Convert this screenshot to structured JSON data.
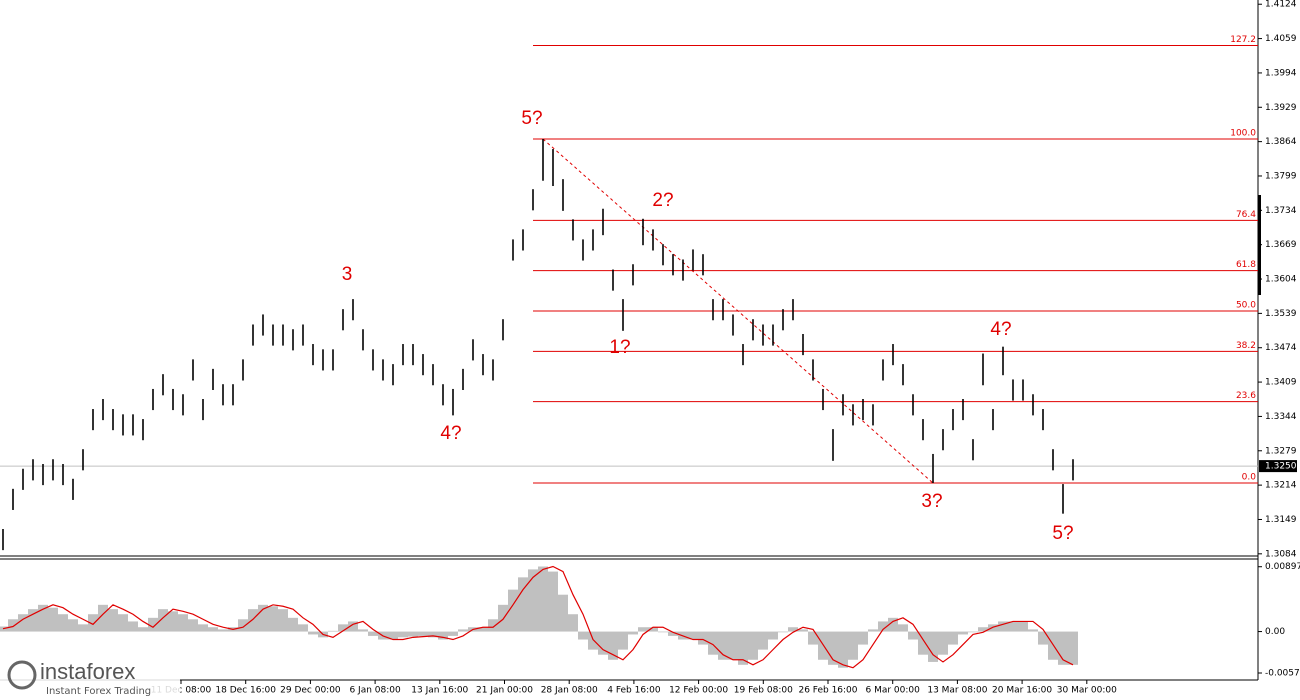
{
  "chart_data": [
    {
      "type": "ohlc",
      "ylim": [
        1.3078,
        1.4132
      ],
      "yticks": [
        1.4124,
        1.4059,
        1.3994,
        1.3929,
        1.3864,
        1.3799,
        1.3734,
        1.3669,
        1.3604,
        1.3539,
        1.3474,
        1.3409,
        1.3344,
        1.3279,
        1.3214,
        1.3149,
        1.3084
      ],
      "color": "#000000",
      "high": [
        1.3131,
        1.3207,
        1.3245,
        1.3263,
        1.3254,
        1.3263,
        1.3254,
        1.3226,
        1.3282,
        1.3358,
        1.3377,
        1.3358,
        1.3348,
        1.3348,
        1.3339,
        1.3396,
        1.3424,
        1.3396,
        1.3386,
        1.3452,
        1.3377,
        1.3434,
        1.3405,
        1.3405,
        1.3452,
        1.3518,
        1.3537,
        1.3518,
        1.3518,
        1.3509,
        1.3518,
        1.3481,
        1.3471,
        1.3471,
        1.3547,
        1.3566,
        1.3509,
        1.3471,
        1.3452,
        1.3443,
        1.3481,
        1.3481,
        1.3462,
        1.3443,
        1.3405,
        1.3396,
        1.3434,
        1.349,
        1.3462,
        1.3452,
        1.3528,
        1.3679,
        1.3698,
        1.3774,
        1.3869,
        1.385,
        1.3793,
        1.3717,
        1.3679,
        1.3698,
        1.3737,
        1.3622,
        1.3566,
        1.3632,
        1.3718,
        1.3698,
        1.367,
        1.3651,
        1.3641,
        1.366,
        1.3651,
        1.3566,
        1.3566,
        1.3537,
        1.3481,
        1.3528,
        1.3518,
        1.3518,
        1.3547,
        1.3566,
        1.35,
        1.3452,
        1.3396,
        1.332,
        1.3386,
        1.3367,
        1.3377,
        1.3367,
        1.3452,
        1.3481,
        1.3443,
        1.3386,
        1.3339,
        1.3273,
        1.332,
        1.3358,
        1.3377,
        1.3301,
        1.3463,
        1.3358,
        1.3476,
        1.3414,
        1.3414,
        1.3386,
        1.3358,
        1.3282,
        1.3216,
        1.3263
      ],
      "low": [
        1.3091,
        1.3167,
        1.3205,
        1.3223,
        1.3214,
        1.3223,
        1.3214,
        1.3186,
        1.3242,
        1.3318,
        1.3337,
        1.3318,
        1.3308,
        1.3308,
        1.3299,
        1.3356,
        1.3384,
        1.3356,
        1.3346,
        1.3412,
        1.3337,
        1.3394,
        1.3365,
        1.3365,
        1.3412,
        1.3478,
        1.3497,
        1.3478,
        1.3478,
        1.3469,
        1.3478,
        1.3441,
        1.3431,
        1.3431,
        1.3507,
        1.3526,
        1.3469,
        1.3431,
        1.3412,
        1.3403,
        1.3441,
        1.3441,
        1.3422,
        1.3403,
        1.3365,
        1.3346,
        1.3394,
        1.345,
        1.3422,
        1.3412,
        1.3488,
        1.3639,
        1.3658,
        1.3734,
        1.379,
        1.378,
        1.3733,
        1.3677,
        1.3639,
        1.3658,
        1.3687,
        1.3582,
        1.3506,
        1.3592,
        1.3668,
        1.3658,
        1.363,
        1.3611,
        1.3601,
        1.362,
        1.3611,
        1.3526,
        1.3526,
        1.3497,
        1.3441,
        1.3488,
        1.3478,
        1.3478,
        1.3507,
        1.3526,
        1.346,
        1.3412,
        1.3356,
        1.326,
        1.3346,
        1.3327,
        1.3337,
        1.3327,
        1.3412,
        1.3441,
        1.3403,
        1.3346,
        1.3299,
        1.3218,
        1.328,
        1.3318,
        1.3337,
        1.3261,
        1.3403,
        1.3318,
        1.3422,
        1.3374,
        1.3374,
        1.3346,
        1.3318,
        1.3242,
        1.316,
        1.3223
      ],
      "current_price": {
        "value": 1.325,
        "label": "1.3250"
      },
      "fib_levels": [
        {
          "value": 1.4046,
          "label": "127.2"
        },
        {
          "value": 1.3869,
          "label": "100.0"
        },
        {
          "value": 1.3715,
          "label": "76.4"
        },
        {
          "value": 1.362,
          "label": "61.8"
        },
        {
          "value": 1.35435,
          "label": "50.0"
        },
        {
          "value": 1.3467,
          "label": "38.2"
        },
        {
          "value": 1.3372,
          "label": "23.6"
        },
        {
          "value": 1.3218,
          "label": "0.0"
        }
      ],
      "annotations": [
        "5?",
        "3",
        "4?",
        "2?",
        "1?",
        "4?",
        "3?",
        "5?"
      ],
      "x_labels": [
        "11 Dec 08:00",
        "18 Dec 16:00",
        "29 Dec 00:00",
        "6 Jan 08:00",
        "13 Jan 16:00",
        "21 Jan 00:00",
        "28 Jan 08:00",
        "4 Feb 16:00",
        "12 Feb 00:00",
        "19 Feb 08:00",
        "26 Feb 16:00",
        "6 Mar 00:00",
        "13 Mar 08:00",
        "20 Mar 16:00",
        "30 Mar 00:00"
      ]
    },
    {
      "type": "macd",
      "ylim": [
        -0.0067,
        0.0099
      ],
      "yticks": [
        0.00897,
        {
          "value": 0,
          "label": "0.00"
        },
        -0.00573
      ],
      "series": [
        {
          "name": "histogram",
          "color": "#c0c0c0",
          "values": [
            0.0007,
            0.0017,
            0.0024,
            0.0031,
            0.0037,
            0.0033,
            0.0024,
            0.0017,
            0.001,
            0.0024,
            0.0037,
            0.0031,
            0.0024,
            0.0014,
            0.0006,
            0.0019,
            0.0031,
            0.0028,
            0.0024,
            0.0017,
            0.001,
            0.0006,
            0.0003,
            0.0006,
            0.0017,
            0.0031,
            0.0037,
            0.0035,
            0.0031,
            0.0019,
            0.001,
            -0.0004,
            -0.0008,
            0.0001,
            0.001,
            0.0014,
            0.0003,
            -0.0006,
            -0.0011,
            -0.0011,
            -0.0008,
            -0.0007,
            -0.0006,
            -0.0008,
            -0.0011,
            -0.0006,
            0.0003,
            0.0006,
            0.0006,
            0.0017,
            0.0037,
            0.0058,
            0.0075,
            0.0086,
            0.009,
            0.0083,
            0.0051,
            0.0024,
            -0.0011,
            -0.0025,
            -0.0032,
            -0.0039,
            -0.0025,
            -0.0004,
            0.0006,
            0.0006,
            -0.0001,
            -0.0006,
            -0.0011,
            -0.0011,
            -0.0018,
            -0.0032,
            -0.0039,
            -0.0039,
            -0.0046,
            -0.0039,
            -0.0025,
            -0.0011,
            -0.0001,
            0.0006,
            0.0003,
            -0.0018,
            -0.0039,
            -0.0046,
            -0.005,
            -0.0039,
            -0.0018,
            0.0003,
            0.0014,
            0.0019,
            0.001,
            -0.0011,
            -0.0032,
            -0.0042,
            -0.0032,
            -0.0018,
            -0.0004,
            -0.0001,
            0.0006,
            0.001,
            0.0014,
            0.0014,
            0.0014,
            0.0003,
            -0.0018,
            -0.0039,
            -0.0046,
            -0.0046
          ]
        },
        {
          "name": "signal",
          "color": "#e00000",
          "values": [
            0.0004,
            0.0007,
            0.0017,
            0.0024,
            0.0031,
            0.0037,
            0.0033,
            0.0024,
            0.0017,
            0.001,
            0.0024,
            0.0037,
            0.0031,
            0.0024,
            0.0014,
            0.0006,
            0.0019,
            0.0031,
            0.0028,
            0.0024,
            0.0017,
            0.001,
            0.0006,
            0.0003,
            0.0006,
            0.0017,
            0.0031,
            0.0037,
            0.0035,
            0.0031,
            0.0019,
            0.001,
            -0.0004,
            -0.0008,
            0.0001,
            0.001,
            0.0014,
            0.0003,
            -0.0006,
            -0.0011,
            -0.0011,
            -0.0008,
            -0.0007,
            -0.0006,
            -0.0008,
            -0.0011,
            -0.0006,
            0.0003,
            0.0006,
            0.0006,
            0.0017,
            0.0037,
            0.0058,
            0.0075,
            0.0086,
            0.009,
            0.0083,
            0.0051,
            0.0024,
            -0.0011,
            -0.0025,
            -0.0032,
            -0.0039,
            -0.0025,
            -0.0004,
            0.0006,
            0.0006,
            -0.0001,
            -0.0006,
            -0.0011,
            -0.0011,
            -0.0018,
            -0.0032,
            -0.0039,
            -0.0039,
            -0.0046,
            -0.0039,
            -0.0025,
            -0.0011,
            -0.0001,
            0.0006,
            0.0003,
            -0.0018,
            -0.0039,
            -0.0046,
            -0.005,
            -0.0039,
            -0.0018,
            0.0003,
            0.0014,
            0.0019,
            0.001,
            -0.0011,
            -0.0032,
            -0.0042,
            -0.0032,
            -0.0018,
            -0.0004,
            -0.0001,
            0.0006,
            0.001,
            0.0014,
            0.0014,
            0.0014,
            0.0003,
            -0.0018,
            -0.0039,
            -0.0046
          ]
        }
      ]
    }
  ],
  "logo": {
    "name": "instaforex",
    "tagline": "Instant Forex Trading"
  }
}
